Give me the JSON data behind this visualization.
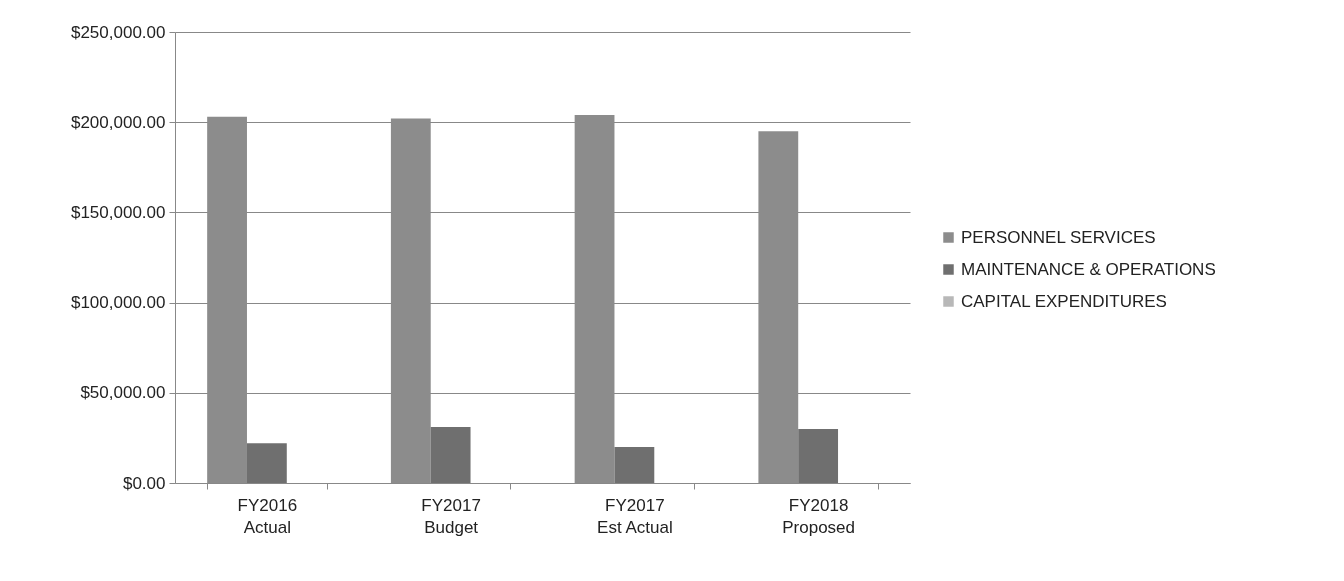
{
  "chart_data": {
    "type": "bar",
    "categories": [
      "FY2016\nActual",
      "FY2017\nBudget",
      "FY2017\nEst Actual",
      "FY2018\nProposed"
    ],
    "series": [
      {
        "name": "PERSONNEL SERVICES",
        "color": "#8c8c8c",
        "values": [
          203000,
          202000,
          204000,
          195000
        ]
      },
      {
        "name": "MAINTENANCE & OPERATIONS",
        "color": "#6f6f6f",
        "values": [
          22000,
          31000,
          20000,
          30000
        ]
      },
      {
        "name": "CAPITAL EXPENDITURES",
        "color": "#b8b8b8",
        "values": [
          0,
          0,
          0,
          0
        ]
      }
    ],
    "ylim": [
      0,
      250000
    ],
    "yticks": [
      {
        "value": 0,
        "label": "$0.00"
      },
      {
        "value": 50000,
        "label": "$50,000.00"
      },
      {
        "value": 100000,
        "label": "$100,000.00"
      },
      {
        "value": 150000,
        "label": "$150,000.00"
      },
      {
        "value": 200000,
        "label": "$200,000.00"
      },
      {
        "value": 250000,
        "label": "$250,000.00"
      }
    ],
    "grid": "y",
    "legend": "right"
  }
}
